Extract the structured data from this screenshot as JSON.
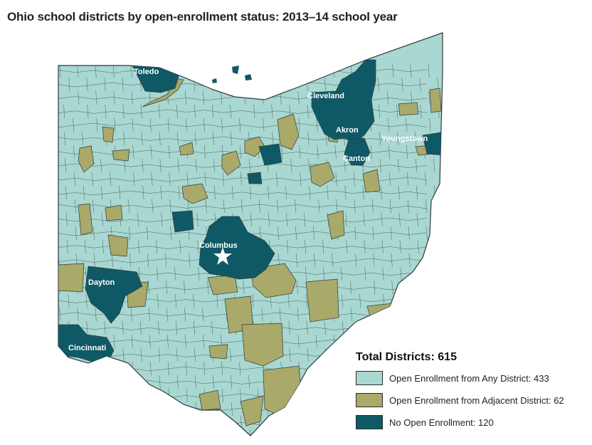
{
  "title": "Ohio school districts by open-enrollment status: 2013–14 school year",
  "colors": {
    "any_district": "#a9d7d1",
    "adjacent_district": "#a9a96a",
    "no_enrollment": "#0f5966",
    "border": "#2e3b3c"
  },
  "cities": {
    "toledo": "Toledo",
    "cleveland": "Cleveland",
    "akron": "Akron",
    "youngstown": "Youngstown",
    "canton": "Canton",
    "columbus": "Columbus",
    "dayton": "Dayton",
    "cincinnati": "Cincinnati"
  },
  "legend": {
    "title": "Total Districts: 615",
    "items": [
      {
        "label": "Open Enrollment from Any District: 433",
        "color": "#a9d7d1",
        "count": 433
      },
      {
        "label": "Open Enrollment from Adjacent District: 62",
        "color": "#a9a96a",
        "count": 62
      },
      {
        "label": "No Open Enrollment: 120",
        "color": "#0f5966",
        "count": 120
      }
    ]
  }
}
